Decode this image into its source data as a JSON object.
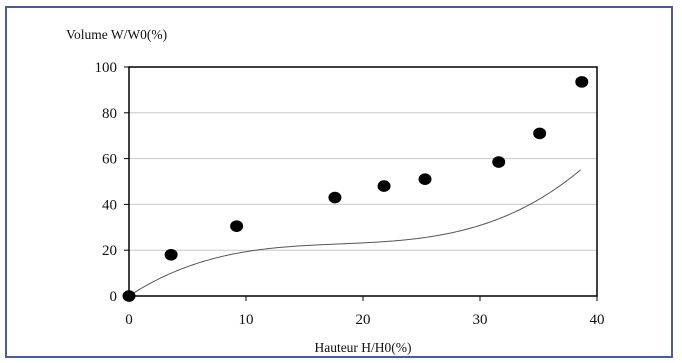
{
  "chart_data": {
    "type": "scatter",
    "ylabel": "Volume W/W0(%)",
    "xlabel": "Hauteur H/H0(%)",
    "xlim": [
      0,
      40
    ],
    "ylim": [
      0,
      100
    ],
    "x_ticks": [
      "0",
      "10",
      "20",
      "30",
      "40"
    ],
    "y_ticks": [
      "0",
      "20",
      "40",
      "60",
      "80",
      "100"
    ],
    "grid": "horizontal",
    "points": [
      {
        "x": 0,
        "y": 0
      },
      {
        "x": 3.6,
        "y": 18
      },
      {
        "x": 9.2,
        "y": 30.5
      },
      {
        "x": 17.6,
        "y": 43
      },
      {
        "x": 21.8,
        "y": 48
      },
      {
        "x": 25.3,
        "y": 51
      },
      {
        "x": 31.6,
        "y": 58.5
      },
      {
        "x": 35.1,
        "y": 71
      },
      {
        "x": 38.7,
        "y": 93.5
      }
    ],
    "trend_line": {
      "type": "polynomial",
      "coefficients": [
        0,
        3.35,
        -0.1737,
        0.00321
      ]
    },
    "colors": {
      "points": "#000000",
      "trend": "#555555",
      "grid": "#c8c8c8",
      "frame": "#4a5d9a"
    }
  }
}
